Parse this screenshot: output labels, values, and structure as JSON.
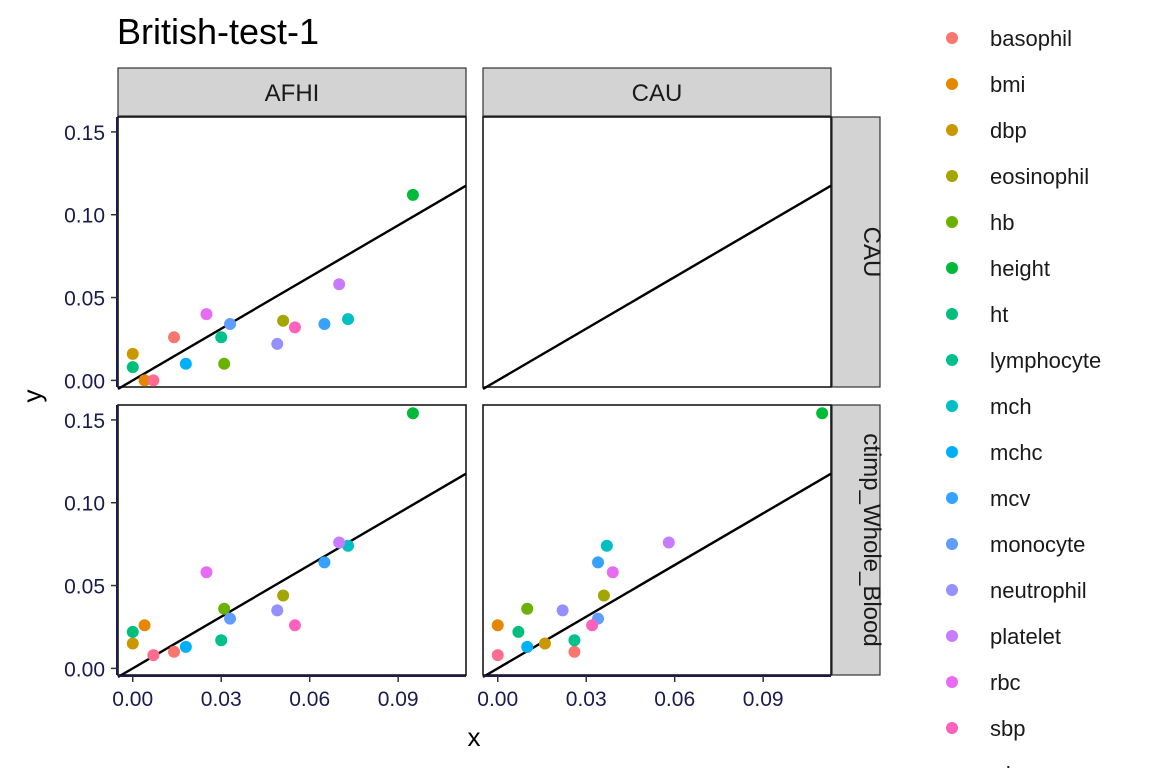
{
  "chart_data": {
    "type": "scatter",
    "title": "British-test-1",
    "xlabel": "x",
    "ylabel": "y",
    "xlim": [
      -0.005,
      0.113
    ],
    "ylim": [
      -0.004,
      0.159
    ],
    "x_ticks": [
      0,
      0.03,
      0.06,
      0.09
    ],
    "x_tick_labels": [
      "0.00",
      "0.03",
      "0.06",
      "0.09"
    ],
    "y_ticks": [
      0,
      0.05,
      0.1,
      0.15
    ],
    "y_tick_labels": [
      "0.00",
      "0.05",
      "0.10",
      "0.15"
    ],
    "column_facets": [
      "AFHI",
      "CAU"
    ],
    "row_facets": [
      "CAU",
      "ctimp_Whole_Blood"
    ],
    "reference_line": {
      "type": "y = slope * x",
      "slope": 1.04
    },
    "legend_position": "right",
    "grid": false,
    "legend": [
      {
        "name": "basophil",
        "color": "#F8766D"
      },
      {
        "name": "bmi",
        "color": "#E58700"
      },
      {
        "name": "dbp",
        "color": "#C99800"
      },
      {
        "name": "eosinophil",
        "color": "#A3A500"
      },
      {
        "name": "hb",
        "color": "#6BB100"
      },
      {
        "name": "height",
        "color": "#00BA38"
      },
      {
        "name": "ht",
        "color": "#00BF7D"
      },
      {
        "name": "lymphocyte",
        "color": "#00C08B"
      },
      {
        "name": "mch",
        "color": "#00BFC4"
      },
      {
        "name": "mchc",
        "color": "#00B0F6"
      },
      {
        "name": "mcv",
        "color": "#35A2FF"
      },
      {
        "name": "monocyte",
        "color": "#619CFF"
      },
      {
        "name": "neutrophil",
        "color": "#9590FF"
      },
      {
        "name": "platelet",
        "color": "#C77CFF"
      },
      {
        "name": "rbc",
        "color": "#E76BF3"
      },
      {
        "name": "sbp",
        "color": "#FF62BC"
      },
      {
        "name": "wbc",
        "color": "#FF6C90"
      }
    ],
    "panels": [
      {
        "col": "AFHI",
        "row": "CAU",
        "points": [
          {
            "series": "basophil",
            "x": 0.014,
            "y": 0.026
          },
          {
            "series": "bmi",
            "x": 0.004,
            "y": 0.0
          },
          {
            "series": "dbp",
            "x": 0.0,
            "y": 0.016
          },
          {
            "series": "eosinophil",
            "x": 0.051,
            "y": 0.036
          },
          {
            "series": "hb",
            "x": 0.031,
            "y": 0.01
          },
          {
            "series": "height",
            "x": 0.095,
            "y": 0.112
          },
          {
            "series": "ht",
            "x": 0.0,
            "y": 0.008
          },
          {
            "series": "lymphocyte",
            "x": 0.03,
            "y": 0.026
          },
          {
            "series": "mch",
            "x": 0.073,
            "y": 0.037
          },
          {
            "series": "mchc",
            "x": 0.018,
            "y": 0.01
          },
          {
            "series": "mcv",
            "x": 0.065,
            "y": 0.034
          },
          {
            "series": "monocyte",
            "x": 0.033,
            "y": 0.034
          },
          {
            "series": "neutrophil",
            "x": 0.049,
            "y": 0.022
          },
          {
            "series": "platelet",
            "x": 0.07,
            "y": 0.058
          },
          {
            "series": "rbc",
            "x": 0.025,
            "y": 0.04
          },
          {
            "series": "sbp",
            "x": 0.055,
            "y": 0.032
          },
          {
            "series": "wbc",
            "x": 0.007,
            "y": 0.0
          }
        ]
      },
      {
        "col": "CAU",
        "row": "CAU",
        "points": []
      },
      {
        "col": "AFHI",
        "row": "ctimp_Whole_Blood",
        "points": [
          {
            "series": "basophil",
            "x": 0.014,
            "y": 0.01
          },
          {
            "series": "bmi",
            "x": 0.004,
            "y": 0.026
          },
          {
            "series": "dbp",
            "x": 0.0,
            "y": 0.015
          },
          {
            "series": "eosinophil",
            "x": 0.051,
            "y": 0.044
          },
          {
            "series": "hb",
            "x": 0.031,
            "y": 0.036
          },
          {
            "series": "height",
            "x": 0.095,
            "y": 0.154
          },
          {
            "series": "ht",
            "x": 0.0,
            "y": 0.022
          },
          {
            "series": "lymphocyte",
            "x": 0.03,
            "y": 0.017
          },
          {
            "series": "mch",
            "x": 0.073,
            "y": 0.074
          },
          {
            "series": "mchc",
            "x": 0.018,
            "y": 0.013
          },
          {
            "series": "mcv",
            "x": 0.065,
            "y": 0.064
          },
          {
            "series": "monocyte",
            "x": 0.033,
            "y": 0.03
          },
          {
            "series": "neutrophil",
            "x": 0.049,
            "y": 0.035
          },
          {
            "series": "platelet",
            "x": 0.07,
            "y": 0.076
          },
          {
            "series": "rbc",
            "x": 0.025,
            "y": 0.058
          },
          {
            "series": "sbp",
            "x": 0.055,
            "y": 0.026
          },
          {
            "series": "wbc",
            "x": 0.007,
            "y": 0.008
          }
        ]
      },
      {
        "col": "CAU",
        "row": "ctimp_Whole_Blood",
        "points": [
          {
            "series": "basophil",
            "x": 0.026,
            "y": 0.01
          },
          {
            "series": "bmi",
            "x": 0.0,
            "y": 0.026
          },
          {
            "series": "dbp",
            "x": 0.016,
            "y": 0.015
          },
          {
            "series": "eosinophil",
            "x": 0.036,
            "y": 0.044
          },
          {
            "series": "hb",
            "x": 0.01,
            "y": 0.036
          },
          {
            "series": "height",
            "x": 0.11,
            "y": 0.154
          },
          {
            "series": "ht",
            "x": 0.007,
            "y": 0.022
          },
          {
            "series": "lymphocyte",
            "x": 0.026,
            "y": 0.017
          },
          {
            "series": "mch",
            "x": 0.037,
            "y": 0.074
          },
          {
            "series": "mchc",
            "x": 0.01,
            "y": 0.013
          },
          {
            "series": "mcv",
            "x": 0.034,
            "y": 0.064
          },
          {
            "series": "monocyte",
            "x": 0.034,
            "y": 0.03
          },
          {
            "series": "neutrophil",
            "x": 0.022,
            "y": 0.035
          },
          {
            "series": "platelet",
            "x": 0.058,
            "y": 0.076
          },
          {
            "series": "rbc",
            "x": 0.039,
            "y": 0.058
          },
          {
            "series": "sbp",
            "x": 0.032,
            "y": 0.026
          },
          {
            "series": "wbc",
            "x": 0.0,
            "y": 0.008
          }
        ]
      }
    ]
  }
}
